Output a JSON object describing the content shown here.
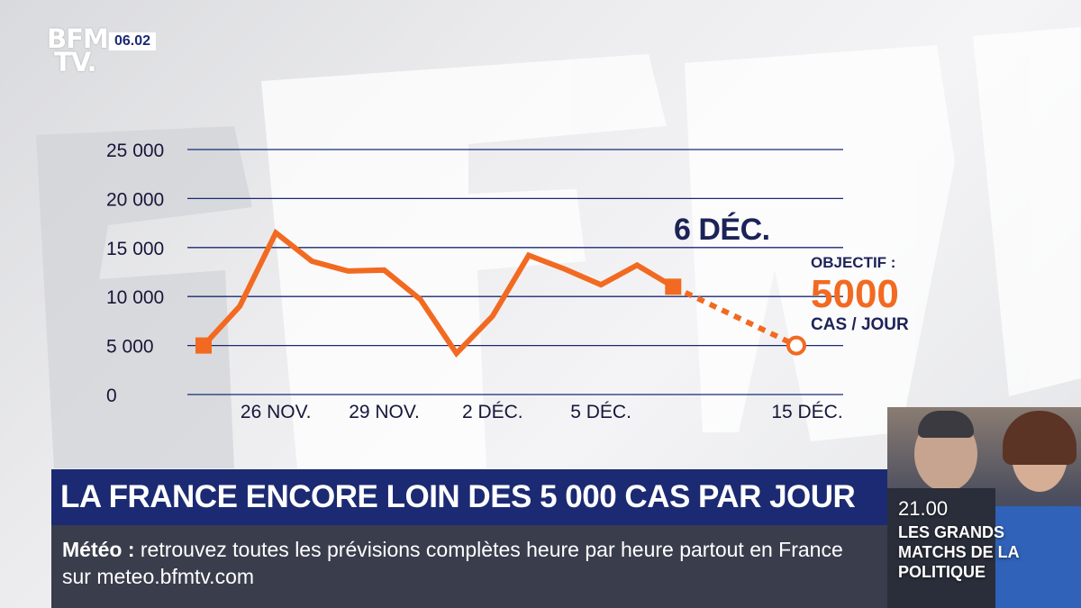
{
  "channel": {
    "logo_line1": "BFM",
    "logo_line2": "TV.",
    "clock": "06.02"
  },
  "chart_data": {
    "type": "line",
    "y_ticks": [
      "25 000",
      "20 000",
      "15 000",
      "10 000",
      "5 000",
      "0"
    ],
    "ylim": [
      0,
      25000
    ],
    "x_tick_labels": [
      "26 NOV.",
      "29 NOV.",
      "2 DÉC.",
      "5 DÉC.",
      "15 DÉC."
    ],
    "series": [
      {
        "values": [
          5000,
          9000,
          16500,
          13600,
          12600,
          12700,
          9700,
          4200,
          8000,
          14200,
          12800,
          11200,
          13200,
          11000
        ],
        "style": "solid",
        "color": "#f26a21"
      },
      {
        "values_from_last": 11000,
        "target": 5000,
        "style": "dotted",
        "color": "#f26a21"
      }
    ],
    "annotation_date": "6 DÉC.",
    "objective_label": "OBJECTIF :",
    "objective_value": "5000",
    "objective_unit": "CAS / JOUR",
    "grid": true
  },
  "headline": "LA FRANCE ENCORE LOIN DES 5 000 CAS PAR JOUR",
  "ticker": {
    "label": "Météo :",
    "text": "retrouvez toutes les prévisions complètes heure par heure partout en France sur meteo.bfmtv.com"
  },
  "promo": {
    "time": "21.00",
    "title": "LES GRANDS MATCHS DE LA POLITIQUE"
  },
  "colors": {
    "accent": "#f26a21",
    "navy": "#1b2a72",
    "ticker_bg": "#3a3d4c"
  }
}
